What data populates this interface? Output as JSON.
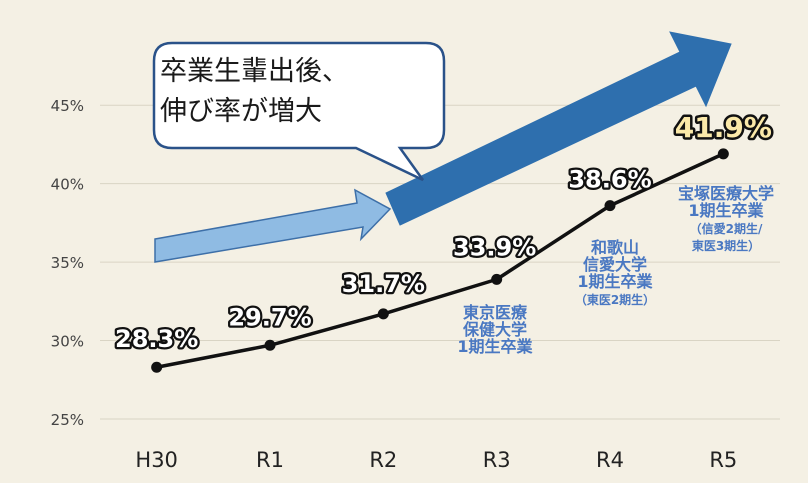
{
  "callout": {
    "line1": "卒業生輩出後、",
    "line2": "伸び率が増大"
  },
  "colors": {
    "background": "#f4f0e4",
    "line": "#111111",
    "grid": "#d9d4c4",
    "big_arrow": "#2e6fae",
    "small_arrow": "#8fbbe3",
    "note_text": "#4a78c2",
    "highlight_label": "#fbe9a9"
  },
  "chart_data": {
    "type": "line",
    "categories": [
      "H30",
      "R1",
      "R2",
      "R3",
      "R4",
      "R5"
    ],
    "series": [
      {
        "values": [
          28.3,
          29.7,
          31.7,
          33.9,
          38.6,
          41.9
        ]
      }
    ],
    "data_labels": [
      "28.3%",
      "29.7%",
      "31.7%",
      "33.9%",
      "38.6%",
      "41.9%"
    ],
    "yticks": [
      "25%",
      "30%",
      "35%",
      "40%",
      "45%"
    ],
    "ytick_values": [
      25,
      30,
      35,
      40,
      45
    ],
    "ylim": [
      25,
      46.8
    ],
    "grid": true,
    "annotations": [
      {
        "category": "R3",
        "lines": [
          "東京医療",
          "保健大学",
          "1期生卒業"
        ]
      },
      {
        "category": "R4",
        "lines": [
          "和歌山",
          "信愛大学",
          "1期生卒業",
          "（東医2期生）"
        ]
      },
      {
        "category": "R5",
        "lines": [
          "宝塚医療大学",
          "1期生卒業",
          "（信愛2期生/",
          "東医3期生）"
        ]
      }
    ]
  }
}
